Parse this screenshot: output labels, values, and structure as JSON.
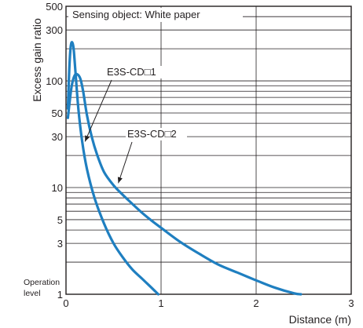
{
  "chart_data": {
    "type": "line",
    "title": "",
    "xlabel": "Distance (m)",
    "ylabel": "Excess gain ratio",
    "x_ticks": [
      "0",
      "1",
      "2",
      "3"
    ],
    "y_ticks": [
      "500",
      "300",
      "100",
      "50",
      "30",
      "10",
      "5",
      "3",
      "1"
    ],
    "xlim": [
      0,
      3
    ],
    "ylim": [
      1,
      500
    ],
    "yscale": "log",
    "grid": true,
    "annotation": "Sensing object: White paper",
    "operation_level_label": [
      "Operation",
      "level"
    ],
    "line_color": "#1f7fc0",
    "series": [
      {
        "name": "E3S-CD□1",
        "x": [
          0.02,
          0.035,
          0.05,
          0.065,
          0.08,
          0.1,
          0.13,
          0.17,
          0.22,
          0.3,
          0.4,
          0.5,
          0.6,
          0.7,
          0.8,
          0.9,
          0.97
        ],
        "y": [
          55,
          130,
          210,
          230,
          200,
          120,
          55,
          27,
          15,
          8,
          4.6,
          3.0,
          2.2,
          1.7,
          1.4,
          1.15,
          1.0
        ]
      },
      {
        "name": "E3S-CD□2",
        "x": [
          0.02,
          0.04,
          0.06,
          0.09,
          0.12,
          0.15,
          0.18,
          0.22,
          0.27,
          0.33,
          0.4,
          0.5,
          0.6,
          0.7,
          0.8,
          0.9,
          1.0,
          1.2,
          1.4,
          1.6,
          1.8,
          2.0,
          2.2,
          2.4,
          2.47
        ],
        "y": [
          45,
          65,
          90,
          112,
          115,
          105,
          80,
          48,
          30,
          20,
          14,
          10.5,
          8.5,
          7,
          5.8,
          4.9,
          4.2,
          3.1,
          2.4,
          1.9,
          1.6,
          1.35,
          1.15,
          1.02,
          1.0
        ]
      }
    ],
    "series_labels": [
      {
        "text": "E3S-CD□1",
        "pointer_to": [
          0.2,
          27
        ]
      },
      {
        "text": "E3S-CD□2",
        "pointer_to": [
          0.55,
          11
        ]
      }
    ]
  }
}
